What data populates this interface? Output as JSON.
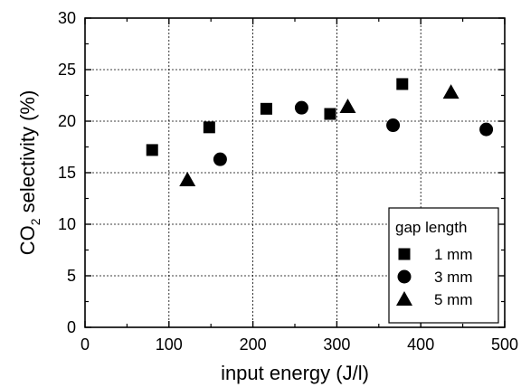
{
  "chart_data": {
    "type": "scatter",
    "xlabel": "input energy (J/l)",
    "ylabel_prefix": "CO",
    "ylabel_sub": "2",
    "ylabel_suffix": " selectivity (%)",
    "xlim": [
      0,
      500
    ],
    "ylim": [
      0,
      30
    ],
    "xticks": [
      0,
      100,
      200,
      300,
      400,
      500
    ],
    "yticks": [
      0,
      5,
      10,
      15,
      20,
      25,
      30
    ],
    "grid": true,
    "legend": {
      "title": "gap length",
      "placement": "bottom-right"
    },
    "series": [
      {
        "name": "1 mm",
        "marker": "square",
        "points": [
          [
            80,
            17.2
          ],
          [
            148,
            19.4
          ],
          [
            216,
            21.2
          ],
          [
            292,
            20.7
          ],
          [
            378,
            23.6
          ]
        ]
      },
      {
        "name": "3 mm",
        "marker": "circle",
        "points": [
          [
            161,
            16.3
          ],
          [
            258,
            21.3
          ],
          [
            367,
            19.6
          ],
          [
            478,
            19.2
          ]
        ]
      },
      {
        "name": "5 mm",
        "marker": "triangle",
        "points": [
          [
            122,
            14.3
          ],
          [
            313,
            21.4
          ],
          [
            436,
            22.8
          ]
        ]
      }
    ],
    "colors": {
      "marker": "#000000",
      "grid": "#000000",
      "axis": "#000000"
    }
  }
}
